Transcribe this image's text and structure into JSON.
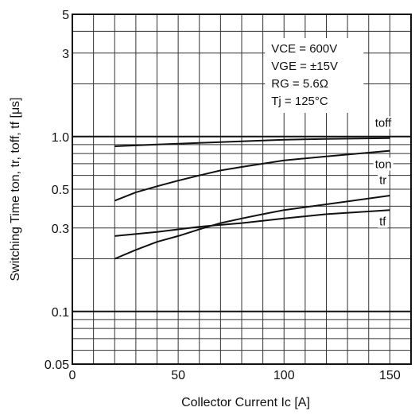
{
  "chart_data": {
    "type": "line",
    "title": "",
    "xlabel": "Collector Current Ic [A]",
    "ylabel": "Switching Time ton, tr, toff, tf [μs]",
    "x_scale": "linear",
    "y_scale": "log",
    "xlim": [
      0,
      160
    ],
    "ylim": [
      0.05,
      5
    ],
    "x_ticks": [
      0,
      50,
      100,
      150
    ],
    "x_tick_labels": [
      "0",
      "50",
      "100",
      "150"
    ],
    "y_ticks": [
      0.05,
      0.1,
      0.3,
      0.5,
      1.0,
      3,
      5
    ],
    "y_tick_labels": [
      "0.05",
      "0.1",
      "0.3",
      "0.5",
      "1.0",
      "3",
      "5"
    ],
    "grid": true,
    "annotation": [
      "VCE = 600V",
      "VGE = ±15V",
      "RG = 5.6Ω",
      "Tj = 125°C"
    ],
    "series": [
      {
        "name": "toff",
        "x": [
          20,
          40,
          60,
          80,
          100,
          120,
          150
        ],
        "y": [
          0.88,
          0.9,
          0.92,
          0.94,
          0.96,
          0.97,
          0.98
        ]
      },
      {
        "name": "ton",
        "x": [
          20,
          30,
          40,
          50,
          60,
          70,
          80,
          90,
          100,
          120,
          150
        ],
        "y": [
          0.43,
          0.48,
          0.52,
          0.56,
          0.6,
          0.64,
          0.67,
          0.7,
          0.73,
          0.77,
          0.83
        ]
      },
      {
        "name": "tr",
        "x": [
          20,
          30,
          40,
          50,
          60,
          70,
          80,
          90,
          100,
          120,
          150
        ],
        "y": [
          0.2,
          0.225,
          0.25,
          0.27,
          0.295,
          0.32,
          0.34,
          0.36,
          0.38,
          0.41,
          0.46
        ]
      },
      {
        "name": "tf",
        "x": [
          20,
          40,
          60,
          80,
          100,
          120,
          150
        ],
        "y": [
          0.27,
          0.285,
          0.305,
          0.32,
          0.34,
          0.36,
          0.38
        ]
      }
    ]
  }
}
